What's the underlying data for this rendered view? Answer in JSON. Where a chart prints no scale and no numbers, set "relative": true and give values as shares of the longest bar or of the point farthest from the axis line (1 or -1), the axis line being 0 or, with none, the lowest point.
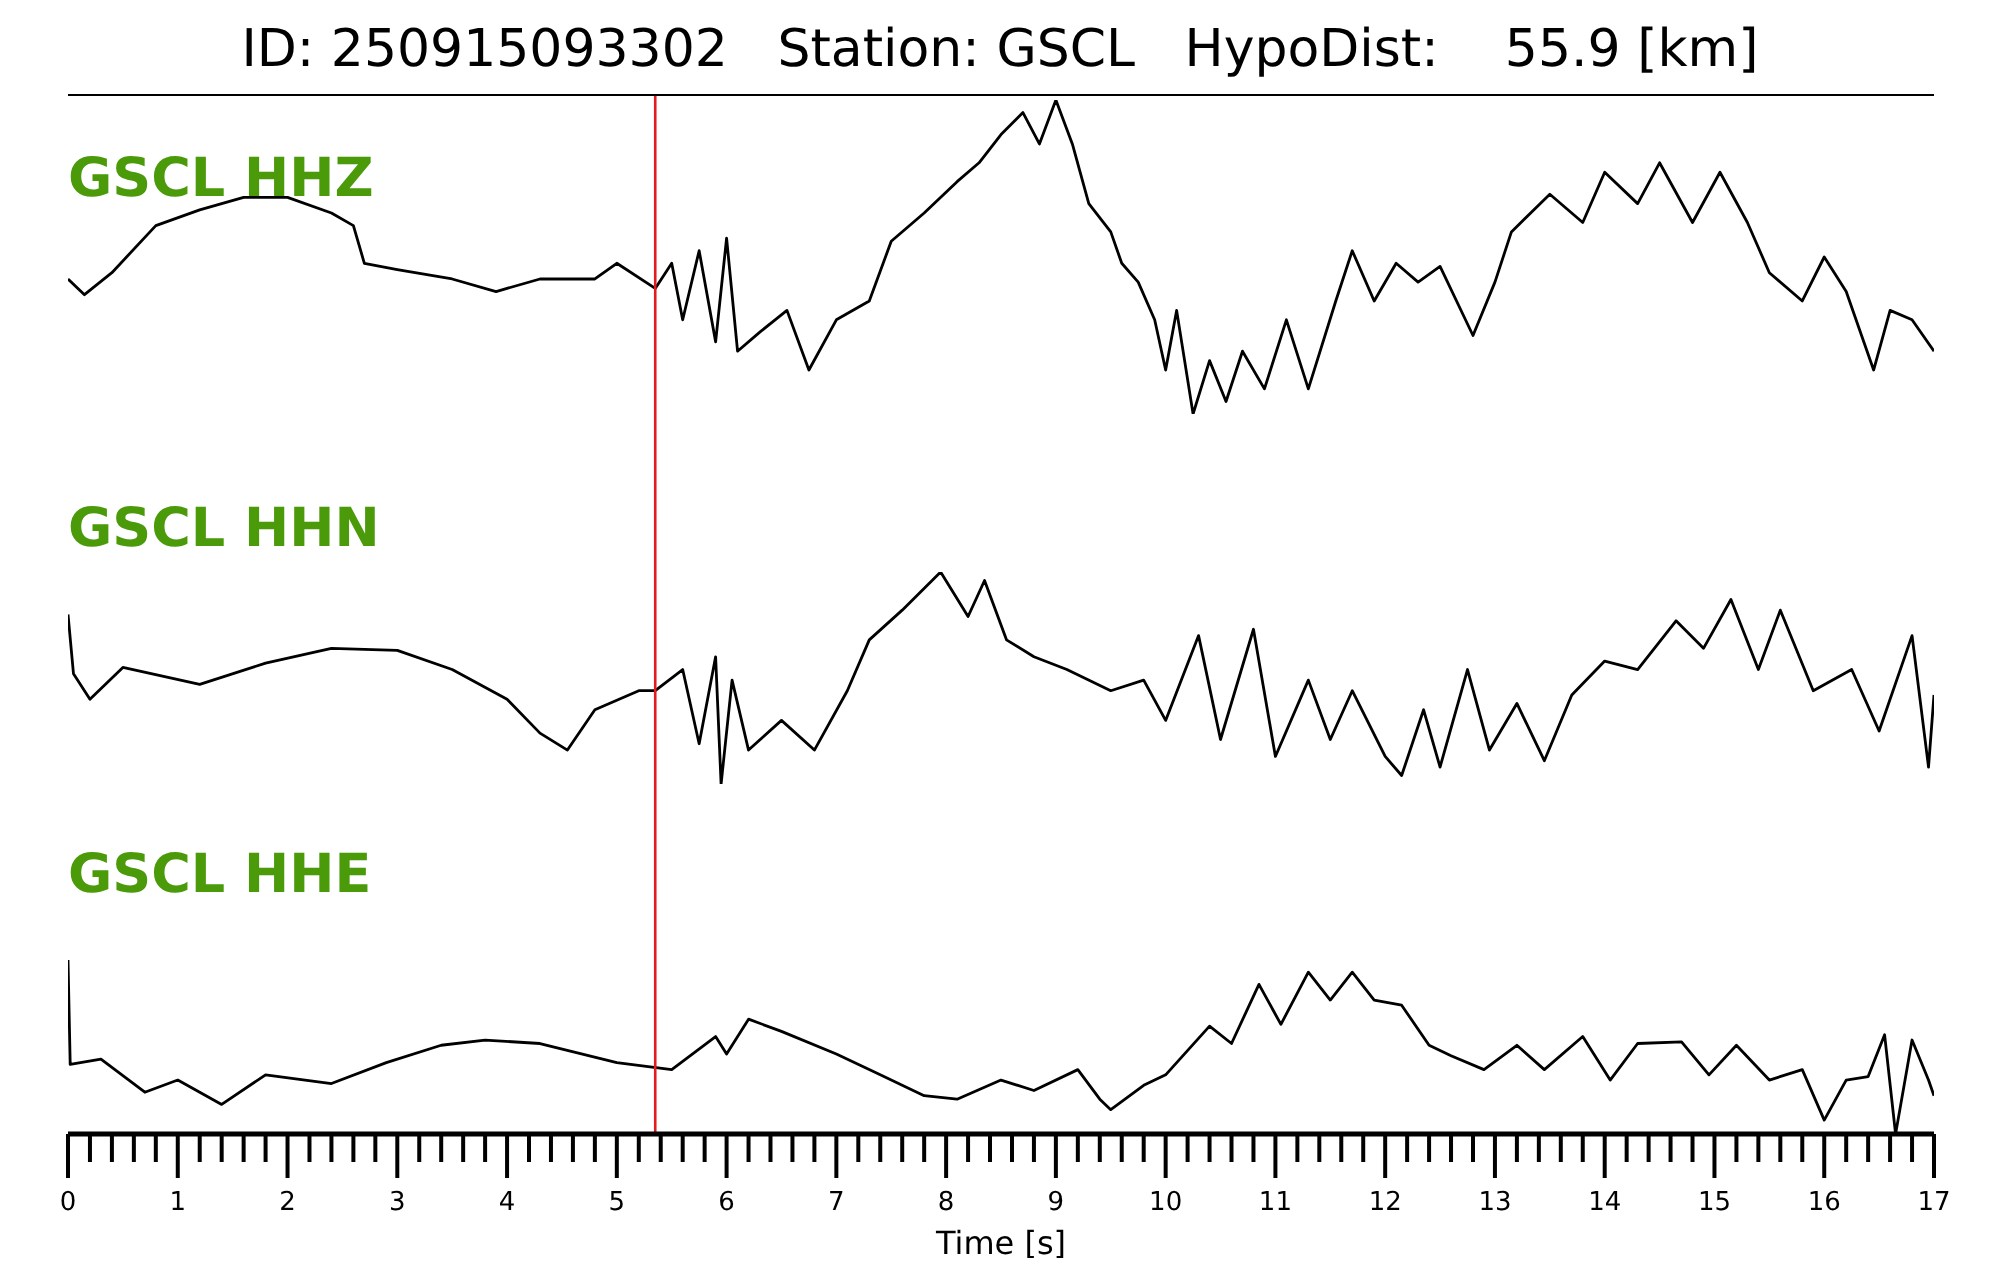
{
  "chart_data": [
    {
      "type": "line",
      "title": "ID: 250915093302   Station: GSCL   HypoDist:    55.9 [km]",
      "relative": true,
      "xlim": [
        0,
        17
      ],
      "tick_labels": false,
      "x": [
        0,
        0.15,
        0.4,
        0.8,
        1.2,
        1.6,
        2.0,
        2.4,
        2.6,
        2.7,
        3.0,
        3.5,
        3.9,
        4.3,
        4.8,
        5.0,
        5.35,
        5.5,
        5.6,
        5.75,
        5.9,
        6.0,
        6.1,
        6.3,
        6.55,
        6.75,
        7.0,
        7.3,
        7.5,
        7.8,
        8.1,
        8.3,
        8.5,
        8.7,
        8.85,
        9.0,
        9.15,
        9.3,
        9.5,
        9.6,
        9.75,
        9.9,
        10.0,
        10.1,
        10.25,
        10.4,
        10.55,
        10.7,
        10.9,
        11.1,
        11.3,
        11.55,
        11.7,
        11.9,
        12.1,
        12.3,
        12.5,
        12.8,
        13.0,
        13.15,
        13.5,
        13.8,
        14.0,
        14.3,
        14.5,
        14.8,
        15.05,
        15.3,
        15.5,
        15.8,
        16.0,
        16.2,
        16.45,
        16.6,
        16.8,
        17.0
      ],
      "series": [
        {
          "name": "GSCL HHZ",
          "color": "#000000",
          "values": [
            0.43,
            0.38,
            0.45,
            0.6,
            0.65,
            0.69,
            0.69,
            0.64,
            0.6,
            0.48,
            0.46,
            0.43,
            0.39,
            0.43,
            0.43,
            0.48,
            0.4,
            0.48,
            0.3,
            0.52,
            0.23,
            0.56,
            0.2,
            0.26,
            0.33,
            0.14,
            0.3,
            0.36,
            0.55,
            0.64,
            0.74,
            0.8,
            0.89,
            0.96,
            0.86,
            1.0,
            0.86,
            0.67,
            0.58,
            0.48,
            0.42,
            0.3,
            0.14,
            0.33,
            0,
            0.17,
            0.04,
            0.2,
            0.08,
            0.3,
            0.08,
            0.36,
            0.52,
            0.36,
            0.48,
            0.42,
            0.47,
            0.25,
            0.42,
            0.58,
            0.7,
            0.61,
            0.77,
            0.67,
            0.8,
            0.61,
            0.77,
            0.61,
            0.45,
            0.36,
            0.5,
            0.39,
            0.14,
            0.33,
            0.3,
            0.2
          ]
        }
      ],
      "ref_lines": [
        {
          "axis": "x",
          "value": 5.35,
          "color": "#e41a1c"
        }
      ]
    },
    {
      "type": "line",
      "relative": true,
      "xlim": [
        0,
        17
      ],
      "tick_labels": false,
      "x": [
        0,
        0.05,
        0.2,
        0.5,
        1.2,
        1.8,
        2.4,
        3.0,
        3.5,
        4.0,
        4.3,
        4.55,
        4.8,
        5.2,
        5.35,
        5.6,
        5.75,
        5.9,
        5.95,
        6.05,
        6.2,
        6.5,
        6.8,
        7.1,
        7.3,
        7.6,
        7.95,
        8.2,
        8.35,
        8.55,
        8.8,
        9.1,
        9.5,
        9.8,
        10.0,
        10.3,
        10.5,
        10.8,
        11.0,
        11.3,
        11.5,
        11.7,
        12.0,
        12.15,
        12.35,
        12.5,
        12.75,
        12.95,
        13.2,
        13.45,
        13.7,
        14.0,
        14.3,
        14.65,
        14.9,
        15.15,
        15.4,
        15.6,
        15.9,
        16.25,
        16.5,
        16.8,
        16.95,
        17.0
      ],
      "series": [
        {
          "name": "GSCL HHN",
          "color": "#000000",
          "values": [
            0.8,
            0.52,
            0.4,
            0.55,
            0.47,
            0.57,
            0.64,
            0.63,
            0.54,
            0.4,
            0.24,
            0.16,
            0.35,
            0.44,
            0.44,
            0.54,
            0.19,
            0.6,
            0,
            0.49,
            0.16,
            0.3,
            0.16,
            0.44,
            0.68,
            0.82,
            1.0,
            0.79,
            0.96,
            0.68,
            0.6,
            0.54,
            0.44,
            0.49,
            0.3,
            0.7,
            0.21,
            0.73,
            0.13,
            0.49,
            0.21,
            0.44,
            0.13,
            0.04,
            0.35,
            0.08,
            0.54,
            0.16,
            0.38,
            0.11,
            0.42,
            0.58,
            0.54,
            0.77,
            0.64,
            0.87,
            0.54,
            0.82,
            0.44,
            0.54,
            0.25,
            0.7,
            0.08,
            0.42
          ]
        }
      ],
      "ref_lines": [
        {
          "axis": "x",
          "value": 5.35,
          "color": "#e41a1c"
        }
      ]
    },
    {
      "type": "line",
      "relative": true,
      "xlim": [
        0,
        17
      ],
      "xlabel": "Time [s]",
      "xticks": [
        0,
        {
          "value": 0.2,
          "label": null
        },
        {
          "value": 0.4,
          "label": null
        },
        {
          "value": 0.6,
          "label": null
        },
        {
          "value": 0.8,
          "label": null
        },
        1,
        {
          "value": 1.2,
          "label": null
        },
        {
          "value": 1.4,
          "label": null
        },
        {
          "value": 1.6,
          "label": null
        },
        {
          "value": 1.8,
          "label": null
        },
        2,
        {
          "value": 2.2,
          "label": null
        },
        {
          "value": 2.4,
          "label": null
        },
        {
          "value": 2.6,
          "label": null
        },
        {
          "value": 2.8,
          "label": null
        },
        3,
        {
          "value": 3.2,
          "label": null
        },
        {
          "value": 3.4,
          "label": null
        },
        {
          "value": 3.6,
          "label": null
        },
        {
          "value": 3.8,
          "label": null
        },
        4,
        {
          "value": 4.2,
          "label": null
        },
        {
          "value": 4.4,
          "label": null
        },
        {
          "value": 4.6,
          "label": null
        },
        {
          "value": 4.8,
          "label": null
        },
        5,
        {
          "value": 5.2,
          "label": null
        },
        {
          "value": 5.4,
          "label": null
        },
        {
          "value": 5.6,
          "label": null
        },
        {
          "value": 5.8,
          "label": null
        },
        6,
        {
          "value": 6.2,
          "label": null
        },
        {
          "value": 6.4,
          "label": null
        },
        {
          "value": 6.6,
          "label": null
        },
        {
          "value": 6.8,
          "label": null
        },
        7,
        {
          "value": 7.2,
          "label": null
        },
        {
          "value": 7.4,
          "label": null
        },
        {
          "value": 7.6,
          "label": null
        },
        {
          "value": 7.8,
          "label": null
        },
        8,
        {
          "value": 8.2,
          "label": null
        },
        {
          "value": 8.4,
          "label": null
        },
        {
          "value": 8.6,
          "label": null
        },
        {
          "value": 8.8,
          "label": null
        },
        9,
        {
          "value": 9.2,
          "label": null
        },
        {
          "value": 9.4,
          "label": null
        },
        {
          "value": 9.6,
          "label": null
        },
        {
          "value": 9.8,
          "label": null
        },
        10,
        {
          "value": 10.2,
          "label": null
        },
        {
          "value": 10.4,
          "label": null
        },
        {
          "value": 10.6,
          "label": null
        },
        {
          "value": 10.8,
          "label": null
        },
        11,
        {
          "value": 11.2,
          "label": null
        },
        {
          "value": 11.4,
          "label": null
        },
        {
          "value": 11.6,
          "label": null
        },
        {
          "value": 11.8,
          "label": null
        },
        12,
        {
          "value": 12.2,
          "label": null
        },
        {
          "value": 12.4,
          "label": null
        },
        {
          "value": 12.6,
          "label": null
        },
        {
          "value": 12.8,
          "label": null
        },
        13,
        {
          "value": 13.2,
          "label": null
        },
        {
          "value": 13.4,
          "label": null
        },
        {
          "value": 13.6,
          "label": null
        },
        {
          "value": 13.8,
          "label": null
        },
        14,
        {
          "value": 14.2,
          "label": null
        },
        {
          "value": 14.4,
          "label": null
        },
        {
          "value": 14.6,
          "label": null
        },
        {
          "value": 14.8,
          "label": null
        },
        15,
        {
          "value": 15.2,
          "label": null
        },
        {
          "value": 15.4,
          "label": null
        },
        {
          "value": 15.6,
          "label": null
        },
        {
          "value": 15.8,
          "label": null
        },
        16,
        {
          "value": 16.2,
          "label": null
        },
        {
          "value": 16.4,
          "label": null
        },
        {
          "value": 16.6,
          "label": null
        },
        {
          "value": 16.8,
          "label": null
        },
        17
      ],
      "tick_labels": "x",
      "x": [
        0,
        0.02,
        0.3,
        0.7,
        1.0,
        1.4,
        1.8,
        2.4,
        2.9,
        3.4,
        3.8,
        4.3,
        5.0,
        5.5,
        5.9,
        6.0,
        6.2,
        6.5,
        7.0,
        7.4,
        7.8,
        8.1,
        8.5,
        8.8,
        9.2,
        9.4,
        9.5,
        9.8,
        10.0,
        10.4,
        10.6,
        10.85,
        11.05,
        11.3,
        11.5,
        11.7,
        11.9,
        12.15,
        12.4,
        12.6,
        12.9,
        13.2,
        13.45,
        13.8,
        14.05,
        14.3,
        14.7,
        14.95,
        15.2,
        15.5,
        15.8,
        16.0,
        16.2,
        16.4,
        16.55,
        16.65,
        16.8,
        16.95,
        17.0
      ],
      "series": [
        {
          "name": "GSCL HHE",
          "color": "#000000",
          "values": [
            1.0,
            0.4,
            0.43,
            0.24,
            0.31,
            0.17,
            0.34,
            0.29,
            0.41,
            0.51,
            0.54,
            0.52,
            0.41,
            0.37,
            0.56,
            0.46,
            0.66,
            0.59,
            0.46,
            0.34,
            0.22,
            0.2,
            0.31,
            0.25,
            0.37,
            0.2,
            0.14,
            0.28,
            0.34,
            0.62,
            0.52,
            0.86,
            0.63,
            0.93,
            0.77,
            0.93,
            0.77,
            0.74,
            0.51,
            0.45,
            0.37,
            0.51,
            0.37,
            0.56,
            0.31,
            0.52,
            0.53,
            0.34,
            0.51,
            0.31,
            0.37,
            0.08,
            0.31,
            0.33,
            0.57,
            0,
            0.54,
            0.31,
            0.22
          ]
        }
      ],
      "ref_lines": [
        {
          "axis": "x",
          "value": 5.35,
          "color": "#e41a1c"
        }
      ]
    }
  ]
}
